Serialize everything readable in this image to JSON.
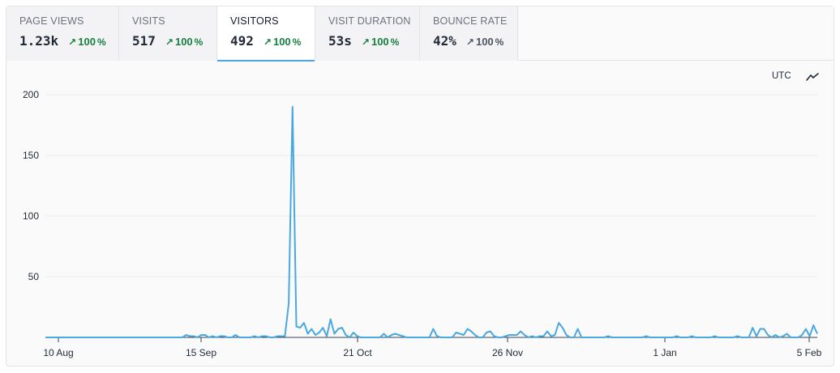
{
  "tabs": [
    {
      "label": "PAGE VIEWS",
      "value": "1.23k",
      "change": "100",
      "direction": "up"
    },
    {
      "label": "VISITS",
      "value": "517",
      "change": "100",
      "direction": "up"
    },
    {
      "label": "VISITORS",
      "value": "492",
      "change": "100",
      "direction": "up",
      "active": true
    },
    {
      "label": "VISIT DURATION",
      "value": "53s",
      "change": "100",
      "direction": "up"
    },
    {
      "label": "BOUNCE RATE",
      "value": "42%",
      "change": "100",
      "direction": "neutral"
    }
  ],
  "pct_symbol": "%",
  "timezone_label": "UTC",
  "chart_type_icon": "line-chart-icon",
  "colors": {
    "line": "#4aa8e0",
    "up": "#15803d",
    "neutral": "#4b5563"
  },
  "chart_data": {
    "type": "line",
    "title": "",
    "xlabel": "",
    "ylabel": "",
    "ylim": [
      0,
      200
    ],
    "yticks": [
      200,
      150,
      100,
      50
    ],
    "xtick_labels": [
      "10 Aug",
      "15 Sep",
      "21 Oct",
      "26 Nov",
      "1 Jan",
      "5 Feb"
    ],
    "x_range": [
      "10 Aug",
      "6 Feb"
    ],
    "grid": true,
    "series": [
      {
        "values": [
          0,
          0,
          0,
          0,
          0,
          0,
          0,
          0,
          0,
          0,
          0,
          0,
          0,
          0,
          0,
          0,
          0,
          0,
          0,
          0,
          0,
          0,
          0,
          0,
          0,
          0,
          0,
          0,
          0,
          0,
          0,
          0,
          0,
          0,
          0,
          0,
          0,
          2,
          1,
          1,
          0,
          2,
          2,
          0,
          1,
          0,
          1,
          1,
          0,
          0,
          2,
          0,
          0,
          0,
          0,
          1,
          0,
          1,
          1,
          0,
          0,
          1,
          1,
          1,
          28,
          190,
          9,
          8,
          12,
          3,
          7,
          2,
          4,
          8,
          1,
          15,
          3,
          7,
          8,
          2,
          0,
          4,
          1,
          0,
          0,
          0,
          0,
          0,
          0,
          3,
          0,
          2,
          3,
          2,
          1,
          0,
          0,
          0,
          0,
          0,
          0,
          0,
          7,
          1,
          0,
          0,
          0,
          0,
          4,
          3,
          2,
          7,
          5,
          2,
          0,
          0,
          4,
          5,
          1,
          0,
          0,
          1,
          2,
          2,
          2,
          5,
          2,
          0,
          1,
          0,
          1,
          1,
          5,
          1,
          2,
          12,
          8,
          2,
          0,
          0,
          7,
          0,
          0,
          0,
          0,
          0,
          0,
          0,
          1,
          0,
          0,
          0,
          0,
          0,
          0,
          0,
          0,
          0,
          1,
          0,
          0,
          0,
          0,
          0,
          0,
          0,
          1,
          0,
          0,
          0,
          1,
          0,
          0,
          0,
          0,
          0,
          1,
          0,
          0,
          0,
          0,
          0,
          1,
          0,
          0,
          0,
          8,
          1,
          7,
          7,
          2,
          0,
          2,
          0,
          1,
          3,
          0,
          0,
          0,
          2,
          7,
          1,
          10,
          3
        ]
      }
    ]
  }
}
